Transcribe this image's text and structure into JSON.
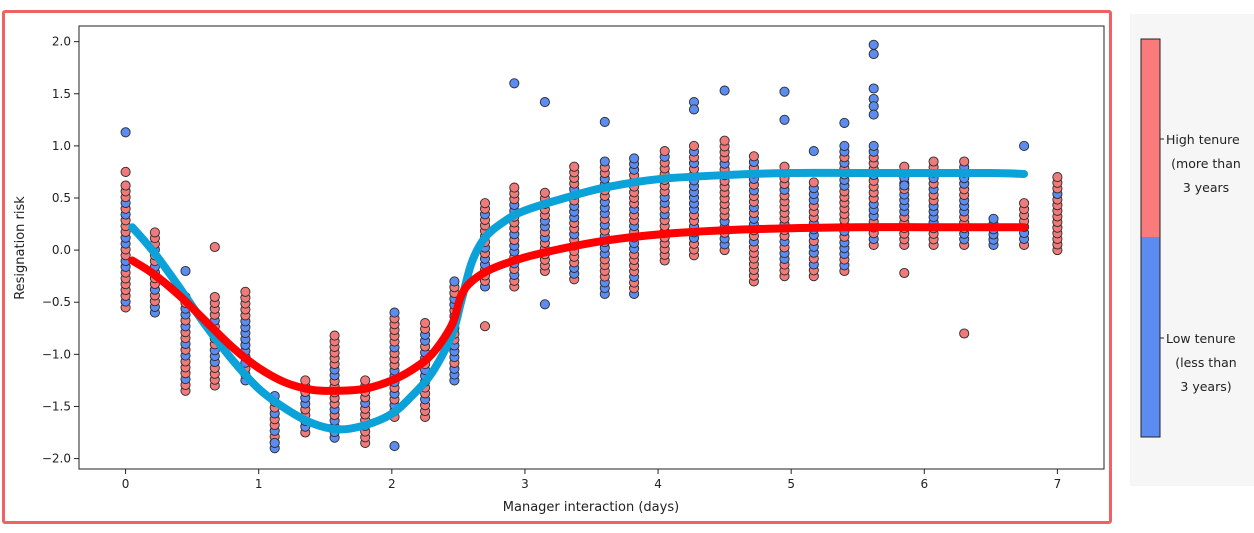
{
  "chart_data": {
    "type": "scatter",
    "xlabel": "Manager interaction (days)",
    "ylabel": "Resignation risk",
    "xlim": [
      -0.35,
      7.35
    ],
    "ylim": [
      -2.1,
      2.15
    ],
    "xticks": [
      "0",
      "1",
      "2",
      "3",
      "4",
      "5",
      "6",
      "7"
    ],
    "yticks": [
      "2.0",
      "1.5",
      "1.0",
      "0.5",
      "0.0",
      "−0.5",
      "−1.0",
      "−1.5",
      "−2.0"
    ],
    "grid": false,
    "colors": {
      "high_tenure_points": "#f07a7a",
      "low_tenure_points": "#5d8cf0",
      "high_tenure_curve": "#ff0000",
      "low_tenure_curve": "#0aa2d8",
      "point_edge": "#2a2a2a",
      "frame_border": "#f06262"
    },
    "colorbar": {
      "placement": "right",
      "segments": [
        {
          "color": "#fa7b7b",
          "labels": [
            "High tenure",
            "(more than",
            "3 years"
          ]
        },
        {
          "color": "#5d8cf0",
          "labels": [
            "Low tenure",
            "(less than",
            "3 years)"
          ]
        }
      ]
    },
    "curves": [
      {
        "color": "#0aa2d8",
        "points": [
          [
            0.05,
            0.22
          ],
          [
            0.2,
            0.0
          ],
          [
            0.4,
            -0.35
          ],
          [
            0.6,
            -0.72
          ],
          [
            0.8,
            -1.05
          ],
          [
            1.0,
            -1.33
          ],
          [
            1.2,
            -1.52
          ],
          [
            1.4,
            -1.66
          ],
          [
            1.6,
            -1.72
          ],
          [
            1.8,
            -1.68
          ],
          [
            2.0,
            -1.57
          ],
          [
            2.15,
            -1.4
          ],
          [
            2.3,
            -1.18
          ],
          [
            2.45,
            -0.82
          ],
          [
            2.52,
            -0.5
          ],
          [
            2.6,
            -0.12
          ],
          [
            2.7,
            0.12
          ],
          [
            2.85,
            0.28
          ],
          [
            3.0,
            0.38
          ],
          [
            3.3,
            0.5
          ],
          [
            3.6,
            0.6
          ],
          [
            4.0,
            0.68
          ],
          [
            4.5,
            0.72
          ],
          [
            5.0,
            0.74
          ],
          [
            5.5,
            0.74
          ],
          [
            6.0,
            0.74
          ],
          [
            6.5,
            0.74
          ],
          [
            6.75,
            0.73
          ]
        ]
      },
      {
        "color": "#ff0000",
        "points": [
          [
            0.05,
            -0.1
          ],
          [
            0.2,
            -0.22
          ],
          [
            0.4,
            -0.43
          ],
          [
            0.6,
            -0.68
          ],
          [
            0.8,
            -0.93
          ],
          [
            1.0,
            -1.13
          ],
          [
            1.2,
            -1.27
          ],
          [
            1.4,
            -1.34
          ],
          [
            1.6,
            -1.35
          ],
          [
            1.8,
            -1.33
          ],
          [
            2.0,
            -1.25
          ],
          [
            2.15,
            -1.15
          ],
          [
            2.3,
            -1.0
          ],
          [
            2.45,
            -0.72
          ],
          [
            2.52,
            -0.44
          ],
          [
            2.6,
            -0.3
          ],
          [
            2.75,
            -0.18
          ],
          [
            3.0,
            -0.07
          ],
          [
            3.3,
            0.02
          ],
          [
            3.6,
            0.09
          ],
          [
            4.0,
            0.15
          ],
          [
            4.5,
            0.19
          ],
          [
            5.0,
            0.21
          ],
          [
            5.5,
            0.22
          ],
          [
            6.0,
            0.22
          ],
          [
            6.5,
            0.22
          ],
          [
            6.75,
            0.22
          ]
        ]
      }
    ],
    "columns": [
      {
        "x": 0.0,
        "ylo": -0.55,
        "yhi": 0.62
      },
      {
        "x": 0.22,
        "ylo": -0.6,
        "yhi": 0.17
      },
      {
        "x": 0.45,
        "ylo": -1.35,
        "yhi": -0.45
      },
      {
        "x": 0.67,
        "ylo": -1.3,
        "yhi": -0.45
      },
      {
        "x": 0.9,
        "ylo": -1.25,
        "yhi": -0.4
      },
      {
        "x": 1.12,
        "ylo": -1.9,
        "yhi": -1.4
      },
      {
        "x": 1.35,
        "ylo": -1.75,
        "yhi": -1.25
      },
      {
        "x": 1.57,
        "ylo": -1.8,
        "yhi": -0.82
      },
      {
        "x": 1.8,
        "ylo": -1.85,
        "yhi": -1.25
      },
      {
        "x": 2.02,
        "ylo": -1.6,
        "yhi": -0.6
      },
      {
        "x": 2.25,
        "ylo": -1.6,
        "yhi": -0.7
      },
      {
        "x": 2.47,
        "ylo": -1.25,
        "yhi": -0.3
      },
      {
        "x": 2.7,
        "ylo": -0.35,
        "yhi": 0.45
      },
      {
        "x": 2.92,
        "ylo": -0.35,
        "yhi": 0.6
      },
      {
        "x": 3.15,
        "ylo": -0.2,
        "yhi": 0.55
      },
      {
        "x": 3.37,
        "ylo": -0.28,
        "yhi": 0.8
      },
      {
        "x": 3.6,
        "ylo": -0.42,
        "yhi": 0.85
      },
      {
        "x": 3.82,
        "ylo": -0.42,
        "yhi": 0.88
      },
      {
        "x": 4.05,
        "ylo": -0.1,
        "yhi": 0.95
      },
      {
        "x": 4.27,
        "ylo": -0.05,
        "yhi": 1.0
      },
      {
        "x": 4.5,
        "ylo": 0.0,
        "yhi": 1.05
      },
      {
        "x": 4.72,
        "ylo": -0.3,
        "yhi": 0.9
      },
      {
        "x": 4.95,
        "ylo": -0.25,
        "yhi": 0.8
      },
      {
        "x": 5.17,
        "ylo": -0.25,
        "yhi": 0.65
      },
      {
        "x": 5.4,
        "ylo": -0.2,
        "yhi": 1.0
      },
      {
        "x": 5.62,
        "ylo": 0.05,
        "yhi": 1.0
      },
      {
        "x": 5.85,
        "ylo": 0.05,
        "yhi": 0.8
      },
      {
        "x": 6.07,
        "ylo": 0.05,
        "yhi": 0.85
      },
      {
        "x": 6.3,
        "ylo": 0.05,
        "yhi": 0.85
      },
      {
        "x": 6.52,
        "ylo": 0.05,
        "yhi": 0.3
      },
      {
        "x": 6.75,
        "ylo": 0.05,
        "yhi": 0.45
      },
      {
        "x": 7.0,
        "ylo": 0.0,
        "yhi": 0.7
      }
    ],
    "extra_points": [
      {
        "x": 0.0,
        "y": 1.13,
        "group": "low"
      },
      {
        "x": 0.0,
        "y": 0.75,
        "group": "high"
      },
      {
        "x": 0.45,
        "y": -0.2,
        "group": "low"
      },
      {
        "x": 0.67,
        "y": 0.03,
        "group": "high"
      },
      {
        "x": 1.12,
        "y": -1.85,
        "group": "low"
      },
      {
        "x": 2.02,
        "y": -1.88,
        "group": "low"
      },
      {
        "x": 2.7,
        "y": -0.73,
        "group": "high"
      },
      {
        "x": 2.92,
        "y": 1.6,
        "group": "low"
      },
      {
        "x": 3.15,
        "y": 1.42,
        "group": "low"
      },
      {
        "x": 3.15,
        "y": -0.52,
        "group": "low"
      },
      {
        "x": 3.6,
        "y": 1.23,
        "group": "low"
      },
      {
        "x": 4.27,
        "y": 1.42,
        "group": "low"
      },
      {
        "x": 4.27,
        "y": 1.35,
        "group": "low"
      },
      {
        "x": 4.5,
        "y": 1.53,
        "group": "low"
      },
      {
        "x": 4.95,
        "y": 1.52,
        "group": "low"
      },
      {
        "x": 4.95,
        "y": 1.25,
        "group": "low"
      },
      {
        "x": 5.17,
        "y": 0.95,
        "group": "low"
      },
      {
        "x": 5.4,
        "y": 1.22,
        "group": "low"
      },
      {
        "x": 5.62,
        "y": 1.97,
        "group": "low"
      },
      {
        "x": 5.62,
        "y": 1.88,
        "group": "low"
      },
      {
        "x": 5.62,
        "y": 1.55,
        "group": "low"
      },
      {
        "x": 5.62,
        "y": 1.45,
        "group": "low"
      },
      {
        "x": 5.62,
        "y": 1.38,
        "group": "low"
      },
      {
        "x": 5.62,
        "y": 1.3,
        "group": "low"
      },
      {
        "x": 5.85,
        "y": 0.62,
        "group": "low"
      },
      {
        "x": 5.85,
        "y": -0.22,
        "group": "high"
      },
      {
        "x": 6.3,
        "y": -0.8,
        "group": "high"
      },
      {
        "x": 6.75,
        "y": 1.0,
        "group": "low"
      }
    ]
  }
}
